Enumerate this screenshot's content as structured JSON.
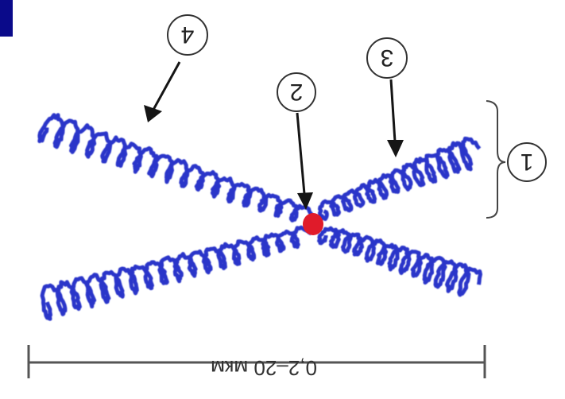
{
  "colors": {
    "chromatid": "#2b35c9",
    "centromere": "#e01b2a",
    "arrow": "#151515",
    "bracket": "#444444",
    "scale_bar": "#555555",
    "corner_tab": "#0a0a8a"
  },
  "callouts": {
    "chromosome": "1",
    "centromere": "2",
    "chromatid_right": "3",
    "chromatid_left": "4"
  },
  "scale_bar": {
    "label": "0,2–20 мкм",
    "orientation": "upside-down"
  }
}
